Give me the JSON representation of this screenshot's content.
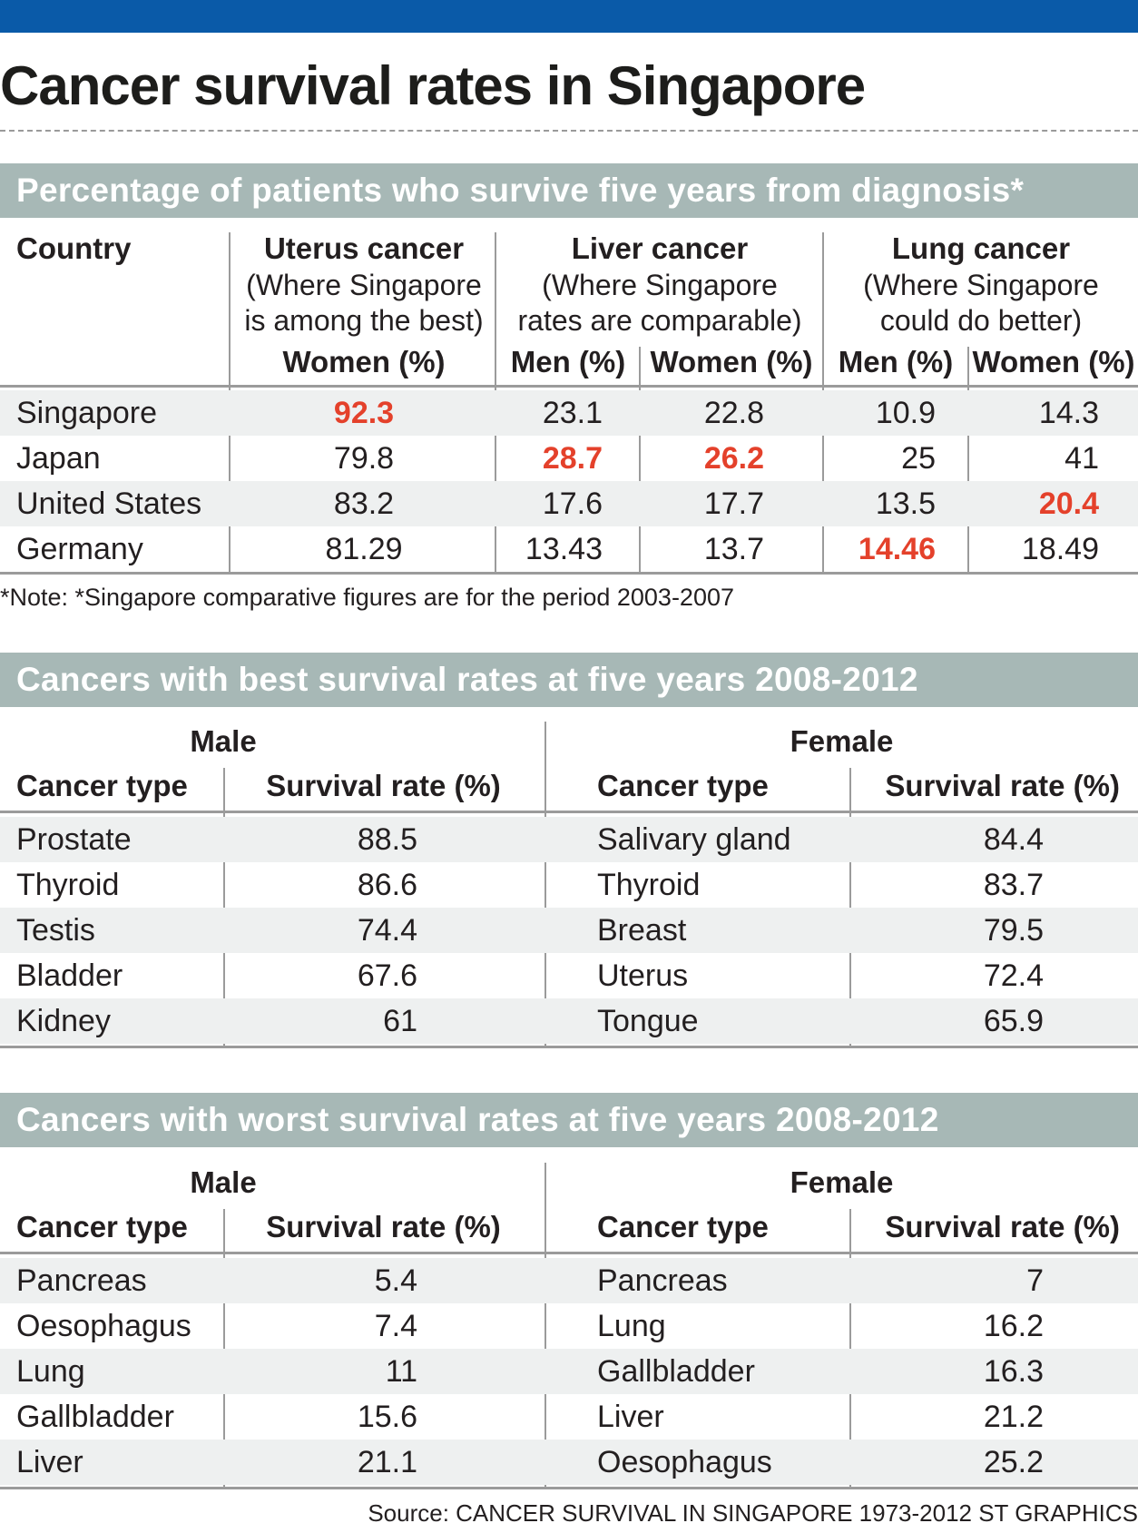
{
  "title": "Cancer survival rates in Singapore",
  "colors": {
    "accent_bar": "#0a5aa8",
    "section_bar": "#a7b8b6",
    "highlight": "#e4412b"
  },
  "section1": {
    "heading": "Percentage of patients who survive five years from diagnosis*",
    "col_country": "Country",
    "uterus": {
      "title": "Uterus cancer",
      "sub1": "(Where Singapore",
      "sub2": "is among the best)",
      "women": "Women (%)"
    },
    "liver": {
      "title": "Liver cancer",
      "sub1": "(Where Singapore",
      "sub2": "rates are comparable)",
      "men": "Men (%)",
      "women": "Women (%)"
    },
    "lung": {
      "title": "Lung cancer",
      "sub1": "(Where Singapore",
      "sub2": "could do better)",
      "men": "Men (%)",
      "women": "Women (%)"
    },
    "rows": [
      {
        "country": "Singapore",
        "uterus_w": "92.3",
        "liver_m": "23.1",
        "liver_w": "22.8",
        "lung_m": "10.9",
        "lung_w": "14.3"
      },
      {
        "country": "Japan",
        "uterus_w": "79.8",
        "liver_m": "28.7",
        "liver_w": "26.2",
        "lung_m": "25",
        "lung_w": "41"
      },
      {
        "country": "United States",
        "uterus_w": "83.2",
        "liver_m": "17.6",
        "liver_w": "17.7",
        "lung_m": "13.5",
        "lung_w": "20.4"
      },
      {
        "country": "Germany",
        "uterus_w": "81.29",
        "liver_m": "13.43",
        "liver_w": "13.7",
        "lung_m": "14.46",
        "lung_w": "18.49"
      }
    ],
    "note": "*Note: *Singapore comparative figures are for the period 2003-2007"
  },
  "section2": {
    "heading": "Cancers with best survival rates at five years 2008-2012",
    "male_label": "Male",
    "female_label": "Female",
    "col_type": "Cancer type",
    "col_rate": "Survival rate (%)",
    "male": [
      {
        "type": "Prostate",
        "rate": "88.5"
      },
      {
        "type": "Thyroid",
        "rate": "86.6"
      },
      {
        "type": "Testis",
        "rate": "74.4"
      },
      {
        "type": "Bladder",
        "rate": "67.6"
      },
      {
        "type": "Kidney",
        "rate": "61"
      }
    ],
    "female": [
      {
        "type": "Salivary gland",
        "rate": "84.4"
      },
      {
        "type": "Thyroid",
        "rate": "83.7"
      },
      {
        "type": "Breast",
        "rate": "79.5"
      },
      {
        "type": "Uterus",
        "rate": "72.4"
      },
      {
        "type": "Tongue",
        "rate": "65.9"
      }
    ]
  },
  "section3": {
    "heading": "Cancers with worst survival rates at five years 2008-2012",
    "male_label": "Male",
    "female_label": "Female",
    "col_type": "Cancer type",
    "col_rate": "Survival rate (%)",
    "male": [
      {
        "type": "Pancreas",
        "rate": "5.4"
      },
      {
        "type": "Oesophagus",
        "rate": "7.4"
      },
      {
        "type": "Lung",
        "rate": "11"
      },
      {
        "type": "Gallbladder",
        "rate": "15.6"
      },
      {
        "type": "Liver",
        "rate": "21.1"
      }
    ],
    "female": [
      {
        "type": "Pancreas",
        "rate": "7"
      },
      {
        "type": "Lung",
        "rate": "16.2"
      },
      {
        "type": "Gallbladder",
        "rate": "16.3"
      },
      {
        "type": "Liver",
        "rate": "21.2"
      },
      {
        "type": "Oesophagus",
        "rate": "25.2"
      }
    ]
  },
  "source": "Source: CANCER SURVIVAL IN SINGAPORE 1973-2012   ST GRAPHICS"
}
